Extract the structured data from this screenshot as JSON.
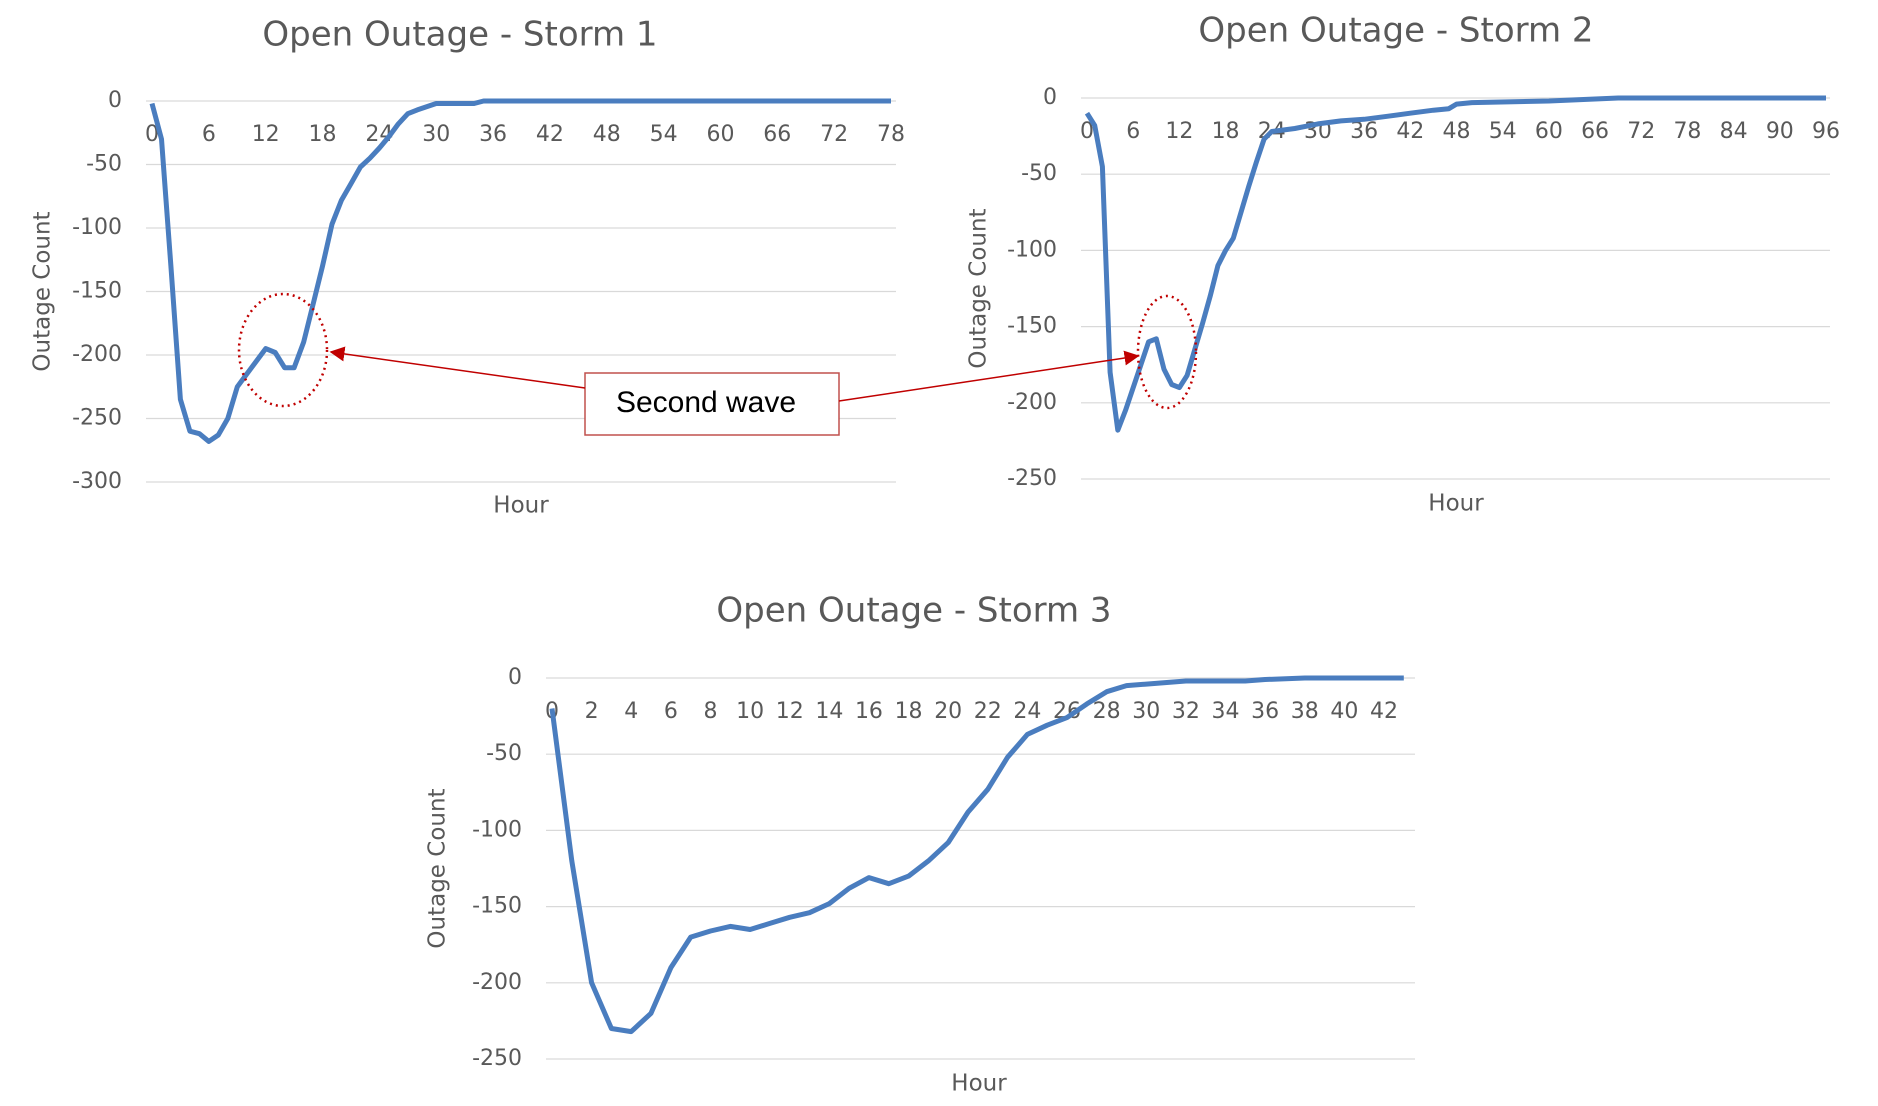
{
  "chart_data": [
    {
      "type": "line",
      "title": "Open Outage - Storm 1",
      "x_label": "Hour",
      "y_label": "Outage Count",
      "xlim": [
        0,
        78
      ],
      "xticks": [
        0,
        6,
        12,
        18,
        24,
        30,
        36,
        42,
        48,
        54,
        60,
        66,
        72,
        78
      ],
      "ylim": [
        -300,
        0
      ],
      "yticks": [
        0,
        -50,
        -100,
        -150,
        -200,
        -250,
        -300
      ],
      "grid": true,
      "series": [
        {
          "name": "Open Outage",
          "color": "#4a7dbf",
          "x": [
            0,
            1,
            2,
            3,
            4,
            5,
            6,
            7,
            8,
            9,
            10,
            11,
            12,
            13,
            14,
            15,
            16,
            17,
            18,
            19,
            20,
            21,
            22,
            23,
            24,
            25,
            26,
            27,
            28,
            30,
            32,
            34,
            35,
            78
          ],
          "values": [
            -2,
            -30,
            -130,
            -235,
            -260,
            -262,
            -268,
            -263,
            -250,
            -225,
            -215,
            -205,
            -195,
            -198,
            -210,
            -210,
            -190,
            -160,
            -130,
            -97,
            -78,
            -65,
            -52,
            -45,
            -37,
            -28,
            -18,
            -10,
            -7,
            -2,
            -2,
            -2,
            0,
            0
          ]
        }
      ]
    },
    {
      "type": "line",
      "title": "Open Outage - Storm 2",
      "x_label": "Hour",
      "y_label": "Outage Count",
      "xlim": [
        0,
        96
      ],
      "xticks": [
        0,
        6,
        12,
        18,
        24,
        30,
        36,
        42,
        48,
        54,
        60,
        66,
        72,
        78,
        84,
        90,
        96
      ],
      "ylim": [
        -250,
        0
      ],
      "yticks": [
        0,
        -50,
        -100,
        -150,
        -200,
        -250
      ],
      "grid": true,
      "series": [
        {
          "name": "Open Outage",
          "color": "#4a7dbf",
          "x": [
            0,
            1,
            2,
            3,
            4,
            5,
            6,
            7,
            8,
            9,
            10,
            11,
            12,
            13,
            14,
            15,
            16,
            17,
            18,
            19,
            20,
            21,
            22,
            23,
            24,
            27,
            30,
            33,
            36,
            39,
            42,
            45,
            47,
            48,
            50,
            60,
            69,
            96
          ],
          "values": [
            -10,
            -18,
            -45,
            -180,
            -218,
            -205,
            -190,
            -175,
            -160,
            -158,
            -178,
            -188,
            -190,
            -182,
            -165,
            -148,
            -130,
            -110,
            -100,
            -92,
            -75,
            -58,
            -42,
            -27,
            -22,
            -20,
            -17,
            -15,
            -14,
            -12,
            -10,
            -8,
            -7,
            -4,
            -3,
            -2,
            0,
            0
          ]
        }
      ]
    },
    {
      "type": "line",
      "title": "Open Outage - Storm 3",
      "x_label": "Hour",
      "y_label": "Outage Count",
      "xlim": [
        0,
        42
      ],
      "xticks": [
        0,
        2,
        4,
        6,
        8,
        10,
        12,
        14,
        16,
        18,
        20,
        22,
        24,
        26,
        28,
        30,
        32,
        34,
        36,
        38,
        40,
        42
      ],
      "ylim": [
        -250,
        0
      ],
      "yticks": [
        0,
        -50,
        -100,
        -150,
        -200,
        -250
      ],
      "grid": true,
      "series": [
        {
          "name": "Open Outage",
          "color": "#4a7dbf",
          "x": [
            0,
            1,
            2,
            3,
            4,
            5,
            6,
            7,
            8,
            9,
            10,
            11,
            12,
            13,
            14,
            15,
            16,
            17,
            18,
            19,
            20,
            21,
            22,
            23,
            24,
            25,
            26,
            27,
            28,
            29,
            30,
            32,
            35,
            36,
            38,
            43
          ],
          "values": [
            -20,
            -120,
            -200,
            -230,
            -232,
            -220,
            -190,
            -170,
            -166,
            -163,
            -165,
            -161,
            -157,
            -154,
            -148,
            -138,
            -131,
            -135,
            -130,
            -120,
            -108,
            -88,
            -73,
            -52,
            -37,
            -31,
            -26,
            -17,
            -9,
            -5,
            -4,
            -2,
            -2,
            -1,
            0,
            0
          ]
        }
      ]
    }
  ],
  "annotation": "Second wave"
}
